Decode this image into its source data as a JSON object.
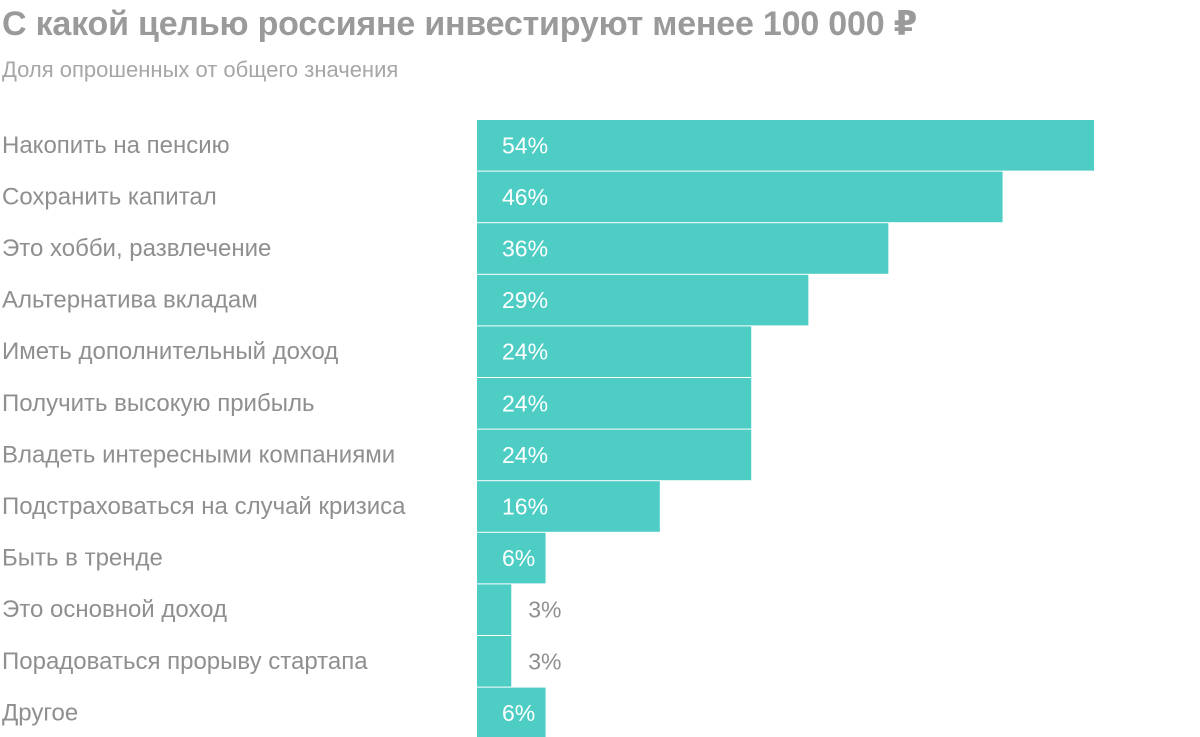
{
  "title": "С какой целью россияне инвестируют менее 100 000 ₽",
  "subtitle": "Доля опрошенных от общего значения",
  "colors": {
    "bar": "#4ecdc4",
    "label_inside": "#ffffff",
    "label_outside": "#8f8f8f",
    "category_text": "#8f8f8f"
  },
  "chart_data": {
    "type": "bar",
    "orientation": "horizontal",
    "title": "С какой целью россияне инвестируют менее 100 000 ₽",
    "subtitle": "Доля опрошенных от общего значения",
    "unit": "%",
    "xlim": [
      0,
      54
    ],
    "grid": false,
    "legend": "none",
    "categories": [
      "Накопить на пенсию",
      "Сохранить капитал",
      "Это хобби, развлечение",
      "Альтернатива вкладам",
      "Иметь дополнительный доход",
      "Получить высокую прибыль",
      "Владеть интересными компаниями",
      "Подстраховаться на случай кризиса",
      "Быть в тренде",
      "Это основной доход",
      "Порадоваться прорыву стартапа",
      "Другое"
    ],
    "values": [
      54,
      46,
      36,
      29,
      24,
      24,
      24,
      16,
      6,
      3,
      3,
      6
    ],
    "value_labels": [
      "54%",
      "46%",
      "36%",
      "29%",
      "24%",
      "24%",
      "24%",
      "16%",
      "6%",
      "3%",
      "3%",
      "6%"
    ]
  }
}
